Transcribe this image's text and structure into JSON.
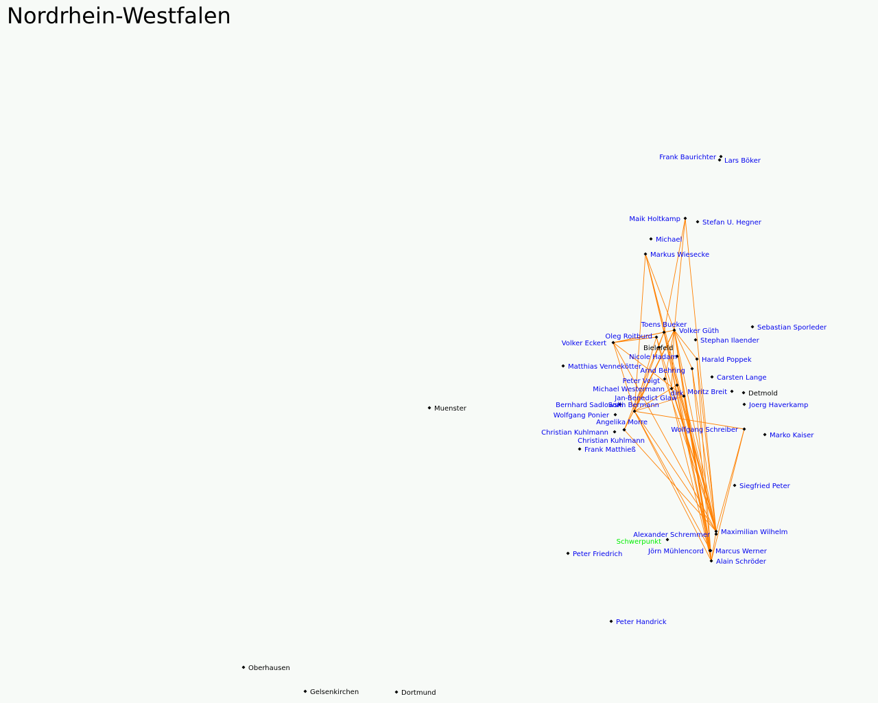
{
  "title": "Nordrhein-Westfalen",
  "colors": {
    "background": "#f7faf7",
    "city_label": "#000000",
    "person_label": "#0000ee",
    "centroid_label": "#00ee00",
    "marker": "#000000",
    "connection_line": "#ff8000"
  },
  "marker_icon": "small-diamond",
  "cities": [
    "Muenster",
    "Bielefeld",
    "Detmold",
    "Oberhausen",
    "Gelsenkirchen",
    "Dortmund"
  ],
  "people": [
    "Frank Baurichter",
    "Lars Böker",
    "Maik Holtkamp",
    "Stefan U. Hegner",
    "Michael",
    "Markus Wiesecke",
    "Toens Bueker",
    "Volker Güth",
    "Oleg Roitburd",
    "Volker Eckert",
    "Stephan Ilaender",
    "Sebastian Sporleder",
    "Nicole Hadam",
    "Harald Poppek",
    "Matthias Vennekötter",
    "Arnd Behring",
    "Carsten Lange",
    "Peter Voigt",
    "Michael Westermann",
    "Moritz Breit",
    "dirk",
    "Jan-Benedict Glaw",
    "Joerg Haverkamp",
    "Bernhard Sadlowski",
    "Sorin Bermann",
    "Wolfgang Ponier",
    "Angelika Morre",
    "Wolfgang Schreiber",
    "Christian Kuhlmann",
    "Christian Kuhlmann",
    "Marko Kaiser",
    "Frank Matthieß",
    "Siegfried Peter",
    "Maximilian Wilhelm",
    "Alexander Schremmer",
    "Jörn Mühlencord",
    "Marcus Werner",
    "Alain Schröder",
    "Peter Friedrich",
    "Peter Handrick"
  ],
  "centroid_label": "Schwerpunkt"
}
